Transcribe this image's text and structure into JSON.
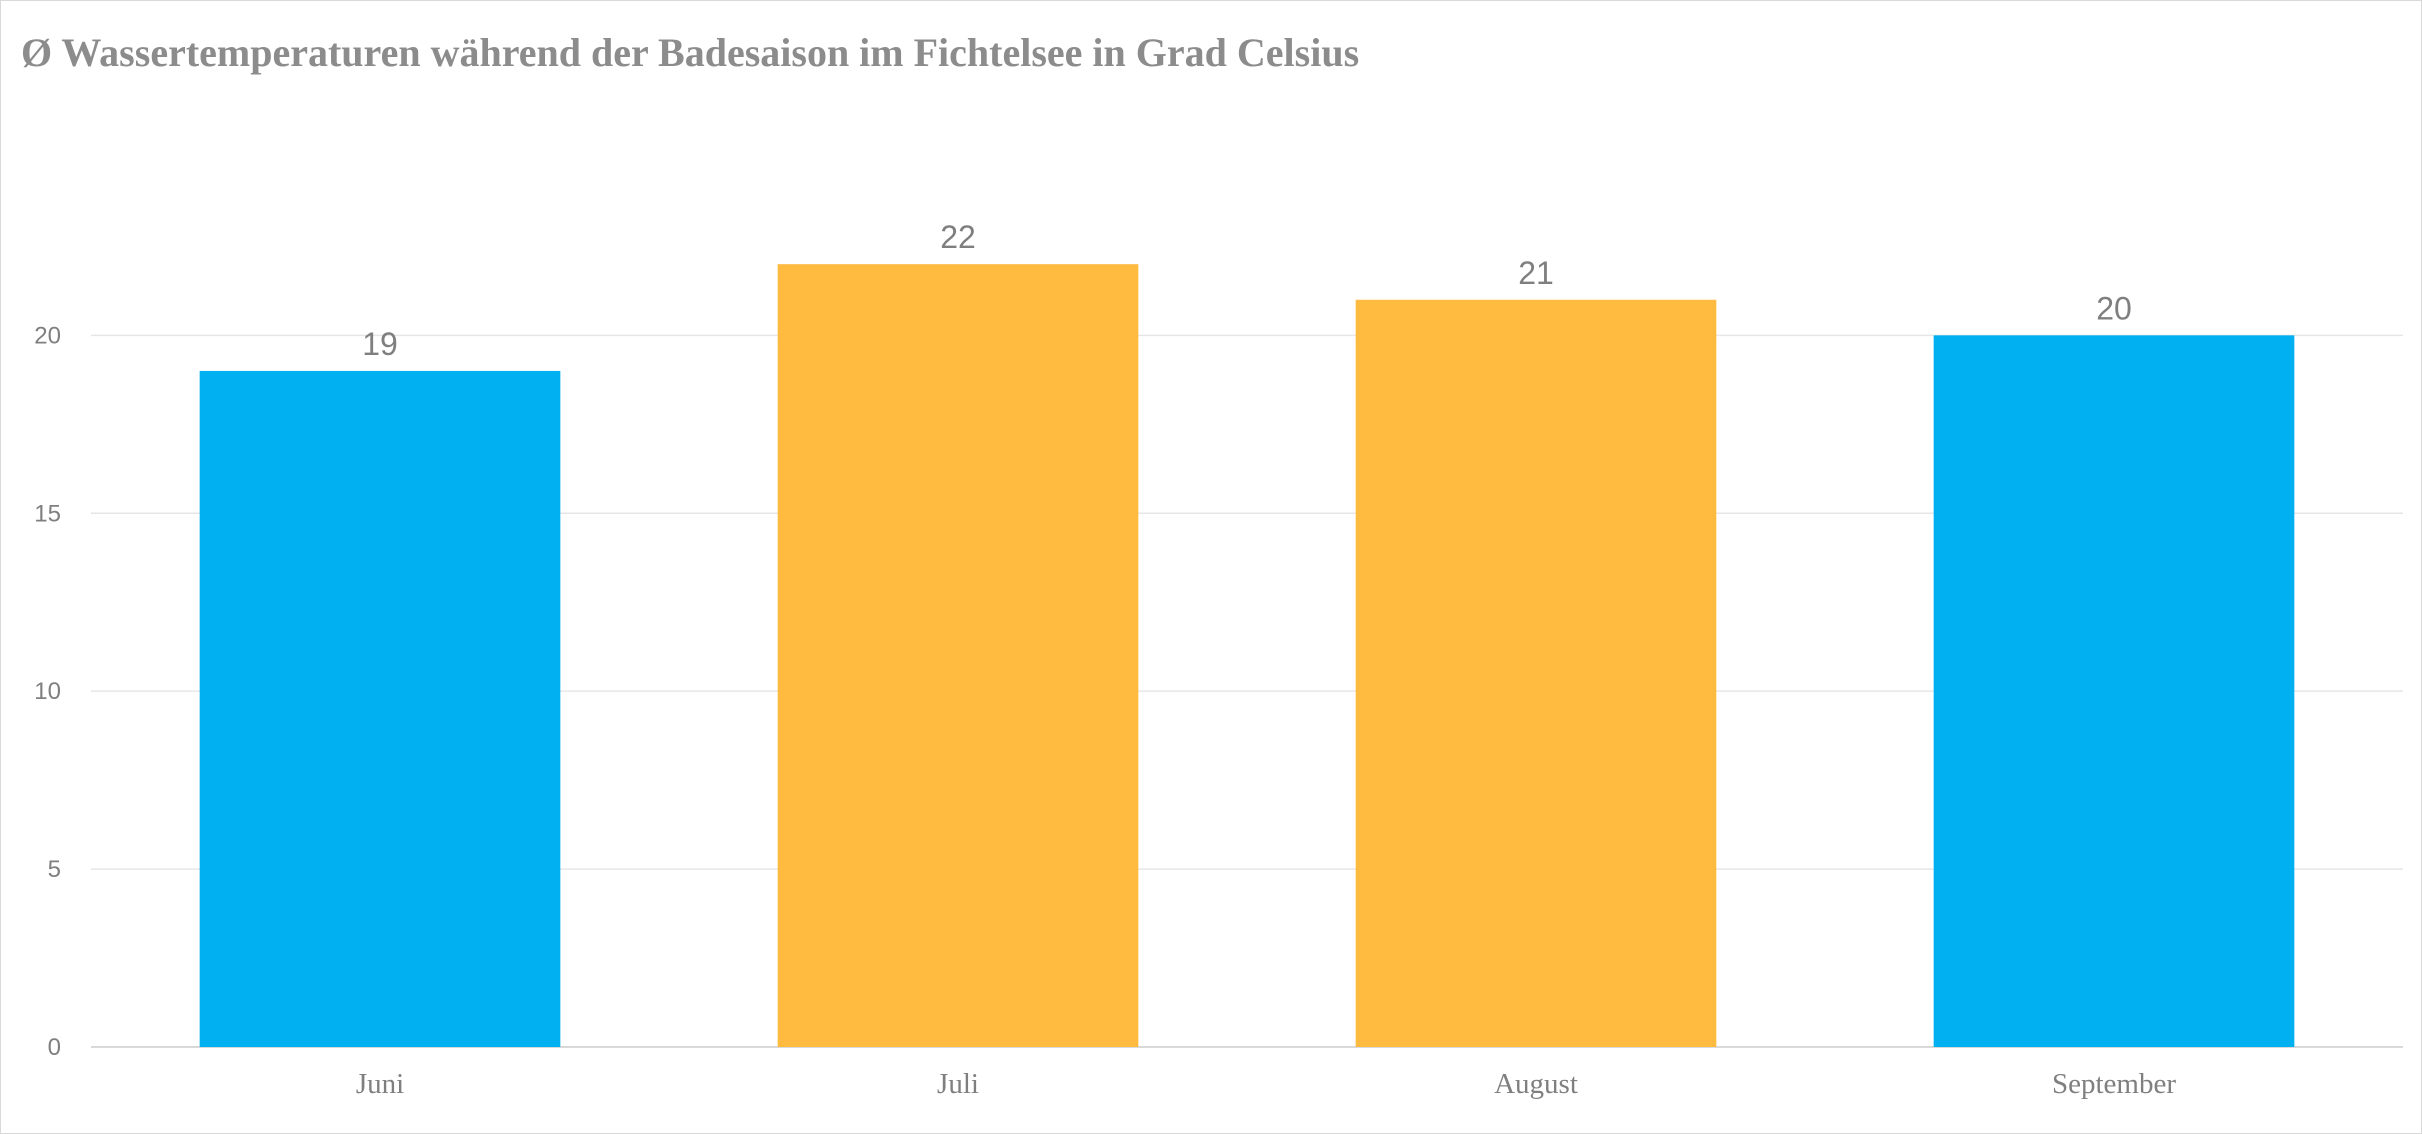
{
  "chart_data": {
    "type": "bar",
    "title": "Ø Wassertemperaturen während der Badesaison im Fichtelsee in Grad Celsius",
    "xlabel": "",
    "ylabel": "",
    "categories": [
      "Juni",
      "Juli",
      "August",
      "September"
    ],
    "values": [
      19,
      22,
      21,
      20
    ],
    "bar_colors": [
      "#00B0F0",
      "#FFBA40",
      "#FFBA40",
      "#00B0F0"
    ],
    "data_labels": [
      "19",
      "22",
      "21",
      "20"
    ],
    "ylim": [
      0,
      24.45
    ],
    "yticks": [
      0,
      5,
      10,
      15,
      20
    ],
    "ytick_labels": [
      "0",
      "5",
      "10",
      "15",
      "20"
    ],
    "grid": true,
    "legend": "none"
  },
  "colors": {
    "grid": "#e6e6e6",
    "axis": "#d9d9d9",
    "text": "#7f7f7f",
    "title": "#8c8c8c"
  }
}
